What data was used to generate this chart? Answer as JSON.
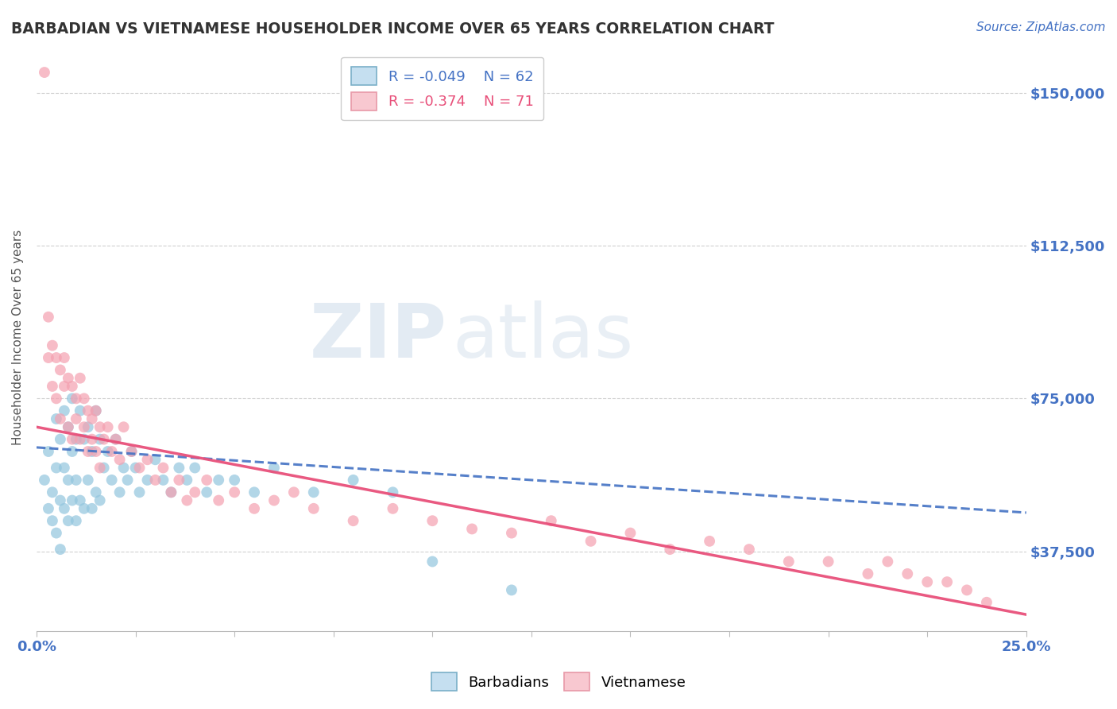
{
  "title": "BARBADIAN VS VIETNAMESE HOUSEHOLDER INCOME OVER 65 YEARS CORRELATION CHART",
  "source": "Source: ZipAtlas.com",
  "ylabel": "Householder Income Over 65 years",
  "xlim": [
    0.0,
    0.25
  ],
  "ylim": [
    18000,
    162000
  ],
  "xticks": [
    0.0,
    0.025,
    0.05,
    0.075,
    0.1,
    0.125,
    0.15,
    0.175,
    0.2,
    0.225,
    0.25
  ],
  "ytick_values": [
    37500,
    75000,
    112500,
    150000
  ],
  "ytick_labels": [
    "$37,500",
    "$75,000",
    "$112,500",
    "$150,000"
  ],
  "barbadian_color": "#92c5de",
  "barbadian_color_light": "#c5dff0",
  "vietnamese_color": "#f4a0b0",
  "vietnamese_color_light": "#f8c8d0",
  "R_barbadian": -0.049,
  "N_barbadian": 62,
  "R_vietnamese": -0.374,
  "N_vietnamese": 71,
  "legend_label_barbadian": "Barbadians",
  "legend_label_vietnamese": "Vietnamese",
  "barbadian_x": [
    0.002,
    0.003,
    0.003,
    0.004,
    0.004,
    0.005,
    0.005,
    0.005,
    0.006,
    0.006,
    0.006,
    0.007,
    0.007,
    0.007,
    0.008,
    0.008,
    0.008,
    0.009,
    0.009,
    0.009,
    0.01,
    0.01,
    0.01,
    0.011,
    0.011,
    0.012,
    0.012,
    0.013,
    0.013,
    0.014,
    0.014,
    0.015,
    0.015,
    0.016,
    0.016,
    0.017,
    0.018,
    0.019,
    0.02,
    0.021,
    0.022,
    0.023,
    0.024,
    0.025,
    0.026,
    0.028,
    0.03,
    0.032,
    0.034,
    0.036,
    0.038,
    0.04,
    0.043,
    0.046,
    0.05,
    0.055,
    0.06,
    0.07,
    0.08,
    0.09,
    0.1,
    0.12
  ],
  "barbadian_y": [
    55000,
    48000,
    62000,
    52000,
    45000,
    70000,
    58000,
    42000,
    65000,
    50000,
    38000,
    72000,
    58000,
    48000,
    68000,
    55000,
    45000,
    75000,
    62000,
    50000,
    65000,
    55000,
    45000,
    72000,
    50000,
    65000,
    48000,
    68000,
    55000,
    62000,
    48000,
    72000,
    52000,
    65000,
    50000,
    58000,
    62000,
    55000,
    65000,
    52000,
    58000,
    55000,
    62000,
    58000,
    52000,
    55000,
    60000,
    55000,
    52000,
    58000,
    55000,
    58000,
    52000,
    55000,
    55000,
    52000,
    58000,
    52000,
    55000,
    52000,
    35000,
    28000
  ],
  "vietnamese_x": [
    0.002,
    0.003,
    0.003,
    0.004,
    0.004,
    0.005,
    0.005,
    0.006,
    0.006,
    0.007,
    0.007,
    0.008,
    0.008,
    0.009,
    0.009,
    0.01,
    0.01,
    0.011,
    0.011,
    0.012,
    0.012,
    0.013,
    0.013,
    0.014,
    0.014,
    0.015,
    0.015,
    0.016,
    0.016,
    0.017,
    0.018,
    0.019,
    0.02,
    0.021,
    0.022,
    0.024,
    0.026,
    0.028,
    0.03,
    0.032,
    0.034,
    0.036,
    0.038,
    0.04,
    0.043,
    0.046,
    0.05,
    0.055,
    0.06,
    0.065,
    0.07,
    0.08,
    0.09,
    0.1,
    0.11,
    0.12,
    0.13,
    0.14,
    0.15,
    0.16,
    0.17,
    0.18,
    0.19,
    0.2,
    0.21,
    0.215,
    0.22,
    0.225,
    0.23,
    0.235,
    0.24
  ],
  "vietnamese_y": [
    155000,
    95000,
    85000,
    88000,
    78000,
    85000,
    75000,
    82000,
    70000,
    85000,
    78000,
    80000,
    68000,
    78000,
    65000,
    75000,
    70000,
    80000,
    65000,
    75000,
    68000,
    72000,
    62000,
    70000,
    65000,
    72000,
    62000,
    68000,
    58000,
    65000,
    68000,
    62000,
    65000,
    60000,
    68000,
    62000,
    58000,
    60000,
    55000,
    58000,
    52000,
    55000,
    50000,
    52000,
    55000,
    50000,
    52000,
    48000,
    50000,
    52000,
    48000,
    45000,
    48000,
    45000,
    43000,
    42000,
    45000,
    40000,
    42000,
    38000,
    40000,
    38000,
    35000,
    35000,
    32000,
    35000,
    32000,
    30000,
    30000,
    28000,
    25000
  ],
  "watermark_zip": "ZIP",
  "watermark_atlas": "atlas",
  "background_color": "#ffffff",
  "grid_color": "#d0d0d0",
  "title_color": "#333333",
  "axis_label_color": "#555555",
  "tick_color_blue": "#4472c4",
  "trend_barbadian_color": "#4472c4",
  "trend_vietnamese_color": "#e8507a"
}
